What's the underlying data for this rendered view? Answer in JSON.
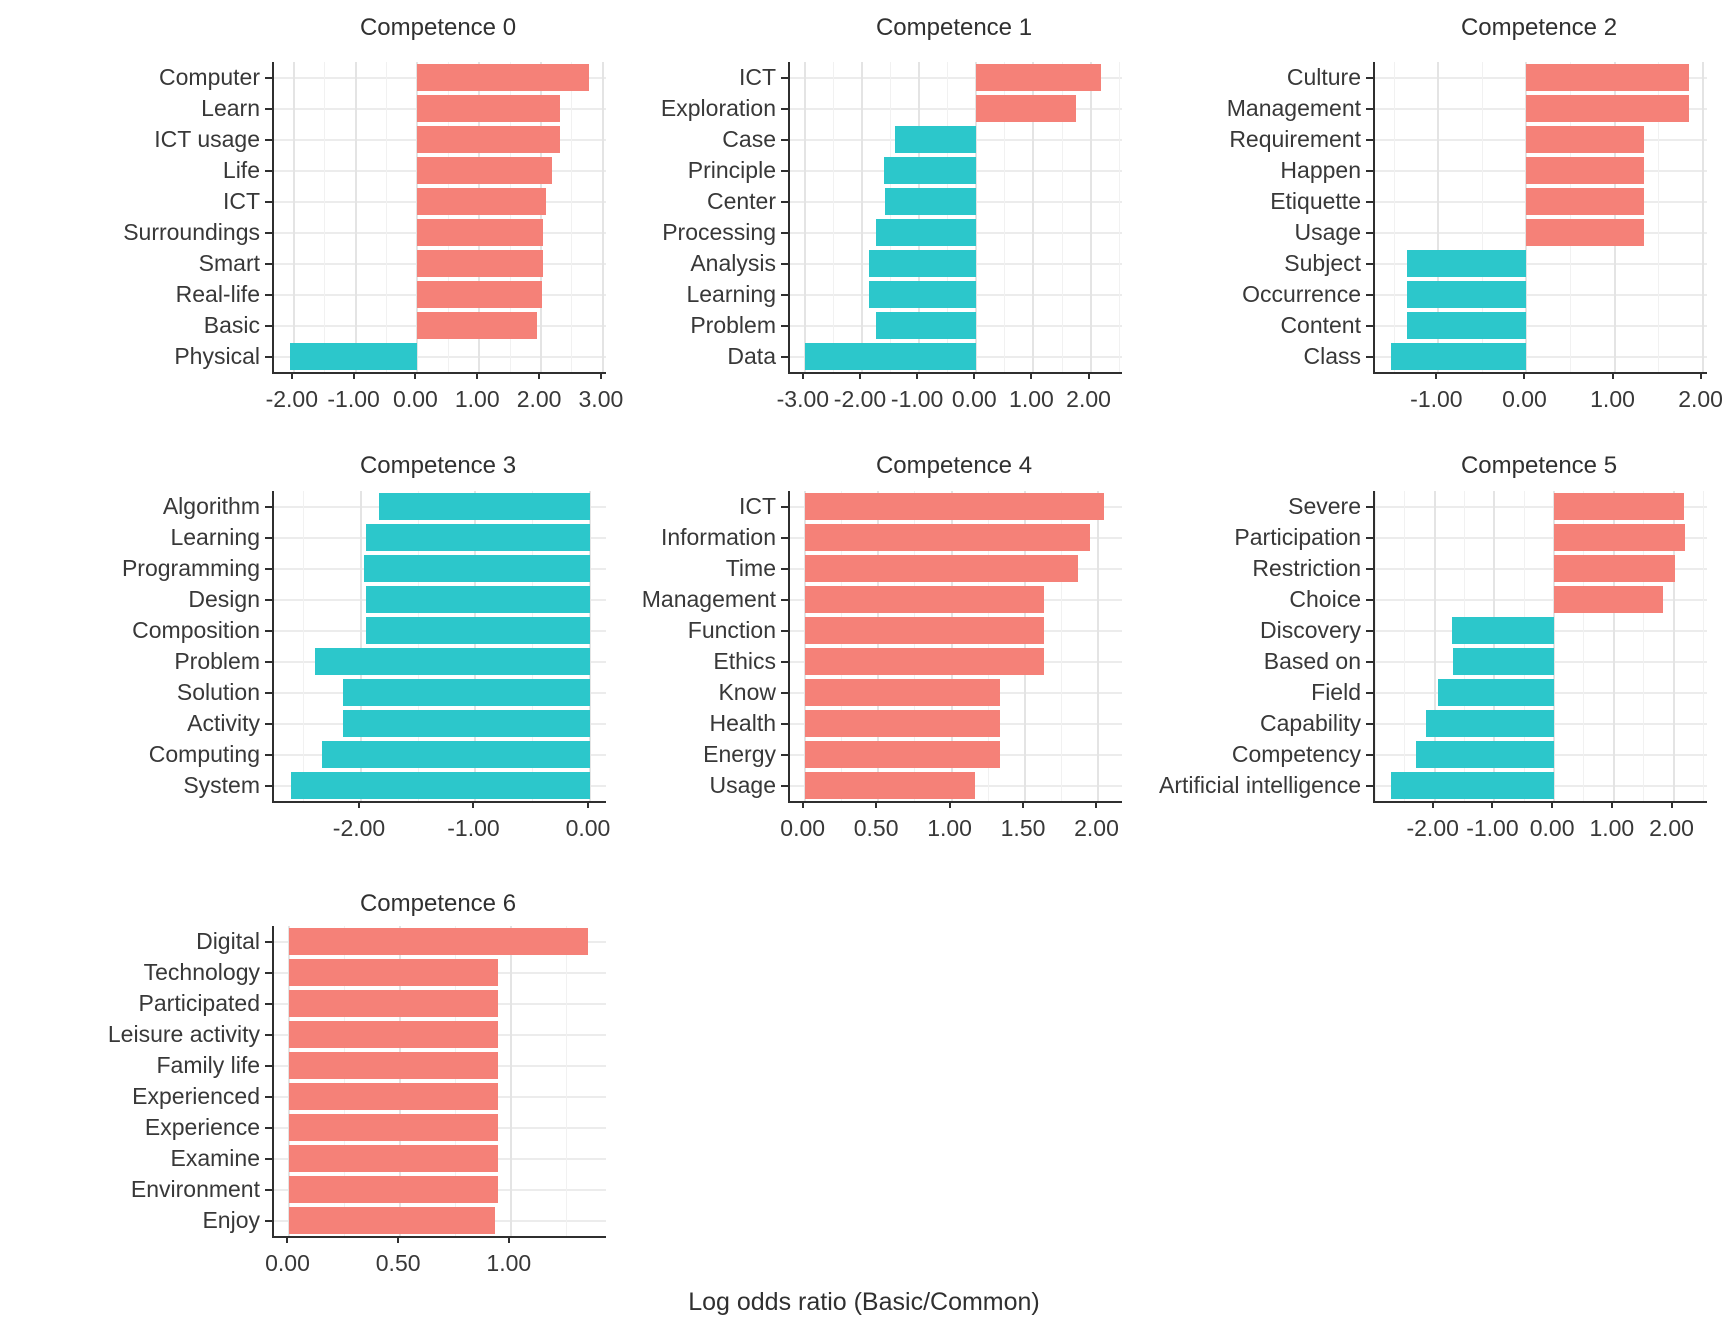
{
  "figure": {
    "xaxis_title": "Log odds ratio (Basic/Common)",
    "colors": {
      "positive_bar": "#F58178",
      "negative_bar": "#2CC7CB"
    }
  },
  "chart_data": [
    {
      "type": "bar",
      "orientation": "horizontal",
      "title": "Competence 0",
      "categories": [
        "Computer",
        "Learn",
        "ICT usage",
        "Life",
        "ICT",
        "Surroundings",
        "Smart",
        "Real-life",
        "Basic",
        "Physical"
      ],
      "values": [
        2.78,
        2.3,
        2.3,
        2.17,
        2.08,
        2.03,
        2.03,
        2.02,
        1.93,
        -2.06
      ],
      "xlim": [
        -2.32,
        3.05
      ],
      "tick_values": [
        -2,
        -1,
        0,
        1,
        2,
        3
      ],
      "tick_labels": [
        "-2.00",
        "-1.00",
        "0.00",
        "1.00",
        "2.00",
        "3.00"
      ],
      "minor_step": 0.5
    },
    {
      "type": "bar",
      "orientation": "horizontal",
      "title": "Competence 1",
      "categories": [
        "ICT",
        "Exploration",
        "Case",
        "Principle",
        "Center",
        "Processing",
        "Analysis",
        "Learning",
        "Problem",
        "Data"
      ],
      "values": [
        2.18,
        1.75,
        -1.42,
        -1.61,
        -1.59,
        -1.76,
        -1.88,
        -1.87,
        -1.75,
        -3.0
      ],
      "xlim": [
        -3.26,
        2.55
      ],
      "tick_values": [
        -3,
        -2,
        -1,
        0,
        1,
        2
      ],
      "tick_labels": [
        "-3.00",
        "-2.00",
        "-1.00",
        "0.00",
        "1.00",
        "2.00"
      ],
      "minor_step": 0.5
    },
    {
      "type": "bar",
      "orientation": "horizontal",
      "title": "Competence 2",
      "categories": [
        "Culture",
        "Management",
        "Requirement",
        "Happen",
        "Etiquette",
        "Usage",
        "Subject",
        "Occurrence",
        "Content",
        "Class"
      ],
      "values": [
        1.85,
        1.85,
        1.34,
        1.33,
        1.34,
        1.34,
        -1.36,
        -1.36,
        -1.36,
        -1.54
      ],
      "xlim": [
        -1.72,
        2.05
      ],
      "tick_values": [
        -1,
        0,
        1,
        2
      ],
      "tick_labels": [
        "-1.00",
        "0.00",
        "1.00",
        "2.00"
      ],
      "minor_step": 0.5
    },
    {
      "type": "bar",
      "orientation": "horizontal",
      "title": "Competence 3",
      "categories": [
        "Algorithm",
        "Learning",
        "Programming",
        "Design",
        "Composition",
        "Problem",
        "Solution",
        "Activity",
        "Computing",
        "System"
      ],
      "values": [
        -1.84,
        -1.96,
        -1.97,
        -1.96,
        -1.96,
        -2.4,
        -2.16,
        -2.16,
        -2.34,
        -2.61
      ],
      "xlim": [
        -2.76,
        0.14
      ],
      "tick_values": [
        -2,
        -1,
        0
      ],
      "tick_labels": [
        "-2.00",
        "-1.00",
        "0.00"
      ],
      "minor_step": 0.5
    },
    {
      "type": "bar",
      "orientation": "horizontal",
      "title": "Competence 4",
      "categories": [
        "ICT",
        "Information",
        "Time",
        "Management",
        "Function",
        "Ethics",
        "Know",
        "Health",
        "Energy",
        "Usage"
      ],
      "values": [
        2.04,
        1.94,
        1.86,
        1.63,
        1.63,
        1.63,
        1.33,
        1.33,
        1.33,
        1.16
      ],
      "xlim": [
        -0.1,
        2.16
      ],
      "tick_values": [
        0,
        0.5,
        1,
        1.5,
        2
      ],
      "tick_labels": [
        "0.00",
        "0.50",
        "1.00",
        "1.50",
        "2.00"
      ],
      "minor_step": 0.25
    },
    {
      "type": "bar",
      "orientation": "horizontal",
      "title": "Competence 5",
      "categories": [
        "Severe",
        "Participation",
        "Restriction",
        "Choice",
        "Discovery",
        "Based on",
        "Field",
        "Capability",
        "Competency",
        "Artificial intelligence"
      ],
      "values": [
        2.18,
        2.19,
        2.02,
        1.83,
        -1.71,
        -1.7,
        -1.95,
        -2.15,
        -2.31,
        -2.74
      ],
      "xlim": [
        -3.0,
        2.56
      ],
      "tick_values": [
        -2,
        -1,
        0,
        1,
        2
      ],
      "tick_labels": [
        "-2.00",
        "-1.00",
        "0.00",
        "1.00",
        "2.00"
      ],
      "minor_step": 0.5
    },
    {
      "type": "bar",
      "orientation": "horizontal",
      "title": "Competence 6",
      "categories": [
        "Digital",
        "Technology",
        "Participated",
        "Leisure activity",
        "Family life",
        "Experienced",
        "Experience",
        "Examine",
        "Environment",
        "Enjoy"
      ],
      "values": [
        1.35,
        0.94,
        0.94,
        0.94,
        0.94,
        0.94,
        0.94,
        0.94,
        0.94,
        0.93
      ],
      "xlim": [
        -0.07,
        1.43
      ],
      "tick_values": [
        0,
        0.5,
        1
      ],
      "tick_labels": [
        "0.00",
        "0.50",
        "1.00"
      ],
      "minor_step": 0.25
    }
  ]
}
